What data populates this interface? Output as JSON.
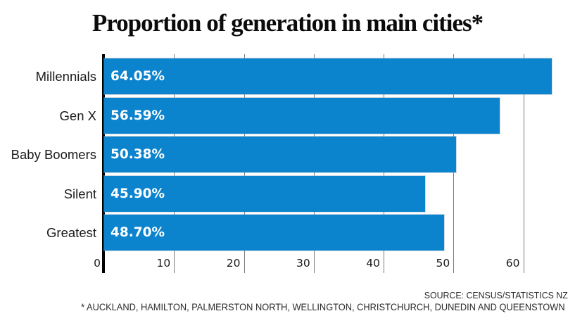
{
  "title": "Proportion of generation in main cities*",
  "chart_data": {
    "type": "bar",
    "orientation": "horizontal",
    "title": "Proportion of generation in main cities*",
    "categories": [
      "Millennials",
      "Gen X",
      "Baby Boomers",
      "Silent",
      "Greatest"
    ],
    "values": [
      64.05,
      56.59,
      50.38,
      45.9,
      48.7
    ],
    "value_labels": [
      "64.05%",
      "56.59%",
      "50.38%",
      "45.90%",
      "48.70%"
    ],
    "x_ticks": [
      0,
      10,
      20,
      30,
      40,
      50,
      60
    ],
    "x_tick_labels": [
      "0",
      "10",
      "20",
      "30",
      "40",
      "50",
      "60"
    ],
    "xlim": [
      0,
      67
    ],
    "grid": true,
    "legend": false,
    "unit": "%",
    "colors": {
      "bar": "#0b83cd",
      "axis": "#000000",
      "gridline": "#7b7b7b",
      "value_label": "#ffffff",
      "text": "#1a1a1a"
    }
  },
  "source": "SOURCE: CENSUS/STATISTICS NZ",
  "footnote": "* AUCKLAND, HAMILTON, PALMERSTON NORTH, WELLINGTON, CHRISTCHURCH, DUNEDIN AND QUEENSTOWN"
}
